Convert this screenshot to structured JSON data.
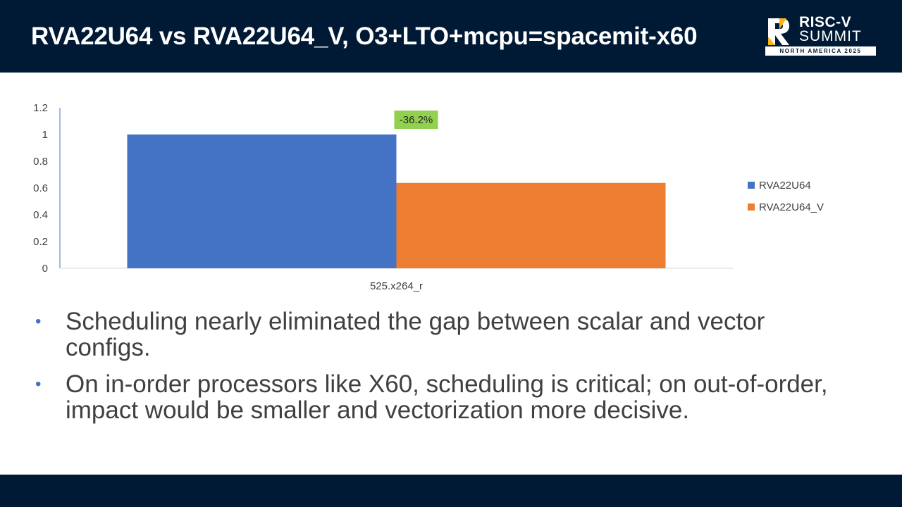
{
  "header": {
    "title": "RVA22U64 vs RVA22U64_V, O3+LTO+mcpu=spacemit-x60",
    "logo": {
      "line1": "RISC-V",
      "line2": "SUMMIT",
      "tagline": "NORTH AMERICA 2025"
    }
  },
  "chart_data": {
    "type": "bar",
    "categories": [
      "525.x264_r"
    ],
    "series": [
      {
        "name": "RVA22U64",
        "values": [
          1.0
        ],
        "color": "#4472c4"
      },
      {
        "name": "RVA22U64_V",
        "values": [
          0.638
        ],
        "color": "#ed7d31"
      }
    ],
    "ylim": [
      0,
      1.2
    ],
    "yticks": [
      "0",
      "0.2",
      "0.4",
      "0.6",
      "0.8",
      "1",
      "1.2"
    ],
    "annotation": {
      "text": "-36.2%",
      "color": "#92d050"
    },
    "legend_position": "right",
    "grid": false
  },
  "bullets": [
    {
      "text": "Scheduling nearly eliminated the gap between scalar and vector configs."
    },
    {
      "text": "On in-order processors like X60, scheduling is critical; on out-of-order, impact would be smaller and vectorization more decisive."
    }
  ],
  "bullet_glyph": "•"
}
